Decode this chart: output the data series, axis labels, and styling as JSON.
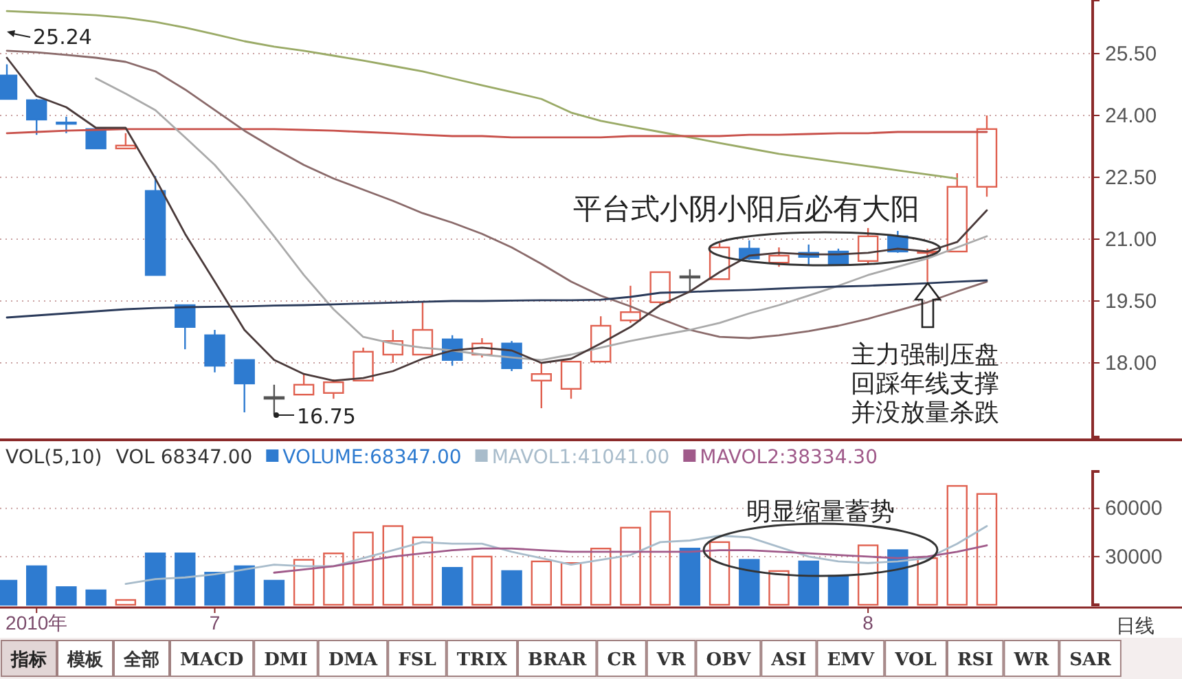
{
  "chart_data": [
    {
      "type": "candlestick",
      "categories": [
        null,
        null,
        null,
        null,
        null,
        null,
        null,
        null,
        null,
        null,
        null,
        null,
        null,
        null,
        null,
        null,
        null,
        null,
        null,
        null,
        null,
        null,
        null,
        null,
        null,
        null,
        null,
        null,
        null,
        null,
        null,
        null,
        null,
        null
      ],
      "ohlc": [
        [
          24.97,
          25.24,
          24.4,
          24.4
        ],
        [
          24.37,
          24.4,
          23.53,
          23.9
        ],
        [
          23.83,
          23.97,
          23.57,
          23.8
        ],
        [
          23.67,
          23.67,
          23.2,
          23.2
        ],
        [
          23.2,
          23.57,
          23.2,
          23.27
        ],
        [
          22.17,
          22.53,
          20.13,
          20.13
        ],
        [
          19.4,
          19.4,
          18.33,
          18.87
        ],
        [
          18.67,
          18.8,
          17.77,
          17.93
        ],
        [
          18.07,
          18.07,
          16.8,
          17.5
        ],
        [
          17.17,
          17.47,
          16.75,
          17.13
        ],
        [
          17.23,
          17.73,
          17.23,
          17.47
        ],
        [
          17.27,
          17.6,
          17.13,
          17.53
        ],
        [
          17.57,
          18.37,
          17.57,
          18.27
        ],
        [
          18.2,
          18.8,
          18.0,
          18.53
        ],
        [
          18.2,
          19.47,
          18.2,
          18.8
        ],
        [
          18.57,
          18.67,
          17.93,
          18.07
        ],
        [
          18.2,
          18.6,
          18.13,
          18.47
        ],
        [
          18.47,
          18.53,
          17.8,
          17.87
        ],
        [
          17.57,
          18.0,
          16.9,
          17.73
        ],
        [
          17.37,
          18.03,
          17.13,
          18.03
        ],
        [
          18.03,
          19.13,
          18.03,
          18.9
        ],
        [
          19.03,
          19.87,
          18.97,
          19.23
        ],
        [
          19.47,
          20.2,
          19.4,
          20.2
        ],
        [
          20.1,
          20.27,
          19.73,
          20.07
        ],
        [
          20.03,
          20.9,
          20.03,
          20.8
        ],
        [
          20.77,
          20.97,
          20.5,
          20.53
        ],
        [
          20.43,
          20.8,
          20.33,
          20.6
        ],
        [
          20.67,
          20.87,
          20.37,
          20.57
        ],
        [
          20.7,
          20.77,
          20.37,
          20.4
        ],
        [
          20.47,
          21.27,
          20.4,
          21.07
        ],
        [
          21.07,
          21.2,
          20.67,
          20.7
        ],
        [
          20.67,
          20.77,
          19.97,
          20.7
        ],
        [
          20.7,
          22.6,
          20.7,
          22.27
        ],
        [
          22.27,
          24.0,
          22.03,
          23.67
        ]
      ],
      "colors": [
        "#2e7bd0",
        "#2e7bd0",
        "#2e7bd0",
        "#2e7bd0",
        "#e0604f",
        "#2e7bd0",
        "#2e7bd0",
        "#2e7bd0",
        "#2e7bd0",
        "#555555",
        "#e0604f",
        "#e0604f",
        "#e0604f",
        "#e0604f",
        "#e0604f",
        "#2e7bd0",
        "#e0604f",
        "#2e7bd0",
        "#e0604f",
        "#e0604f",
        "#e0604f",
        "#e0604f",
        "#e0604f",
        "#555555",
        "#e0604f",
        "#2e7bd0",
        "#e0604f",
        "#2e7bd0",
        "#2e7bd0",
        "#e0604f",
        "#2e7bd0",
        "#e0604f",
        "#e0604f",
        "#e0604f"
      ],
      "series": [
        {
          "type": "line",
          "color": "#9aaa66",
          "values": [
            26.53,
            26.5,
            26.47,
            26.43,
            26.37,
            26.27,
            26.13,
            25.97,
            25.8,
            25.67,
            25.57,
            25.45,
            25.33,
            25.2,
            25.07,
            24.9,
            24.73,
            24.57,
            24.4,
            24.07,
            23.87,
            23.73,
            23.6,
            23.47,
            23.33,
            23.2,
            23.07,
            22.97,
            22.87,
            22.77,
            22.67,
            22.57,
            22.47,
            null
          ]
        },
        {
          "type": "line",
          "color": "#c8504a",
          "values": [
            23.57,
            23.6,
            23.63,
            23.65,
            23.67,
            23.67,
            23.67,
            23.67,
            23.67,
            23.67,
            23.65,
            23.63,
            23.6,
            23.57,
            23.53,
            23.5,
            23.5,
            23.47,
            23.47,
            23.47,
            23.47,
            23.5,
            23.5,
            23.5,
            23.5,
            23.53,
            23.53,
            23.55,
            23.57,
            23.57,
            23.6,
            23.6,
            23.6,
            23.6
          ]
        },
        {
          "type": "line",
          "color": "#8a6a6a",
          "values": [
            25.57,
            25.53,
            25.47,
            25.4,
            25.3,
            25.07,
            24.63,
            24.13,
            23.63,
            23.2,
            22.8,
            22.47,
            22.2,
            21.93,
            21.63,
            21.4,
            21.13,
            20.8,
            20.4,
            19.97,
            19.63,
            19.37,
            19.07,
            18.8,
            18.63,
            18.6,
            18.67,
            18.77,
            18.9,
            19.07,
            19.27,
            19.47,
            19.73,
            19.97
          ]
        },
        {
          "type": "line",
          "color": "#aaaaaa",
          "values": [
            null,
            null,
            null,
            24.9,
            24.53,
            24.13,
            23.47,
            22.8,
            21.97,
            21.07,
            20.13,
            19.3,
            18.63,
            18.47,
            18.37,
            18.3,
            18.2,
            18.13,
            18.07,
            18.2,
            18.37,
            18.53,
            18.67,
            18.8,
            18.97,
            19.2,
            19.4,
            19.63,
            19.87,
            20.13,
            20.33,
            20.53,
            20.8,
            21.07
          ]
        },
        {
          "type": "line",
          "color": "#2a3a5a",
          "values": [
            19.1,
            19.15,
            19.2,
            19.25,
            19.3,
            19.33,
            19.35,
            19.36,
            19.37,
            19.39,
            19.4,
            19.42,
            19.44,
            19.46,
            19.48,
            19.5,
            19.5,
            19.51,
            19.52,
            19.52,
            19.53,
            19.6,
            19.7,
            19.72,
            19.75,
            19.77,
            19.8,
            19.83,
            19.85,
            19.87,
            19.9,
            19.93,
            19.97,
            20.0
          ]
        },
        {
          "type": "line",
          "color": "#4a3a3a",
          "values": [
            25.4,
            24.47,
            24.2,
            23.7,
            23.7,
            22.47,
            21.13,
            19.97,
            18.8,
            18.07,
            17.73,
            17.57,
            17.63,
            17.8,
            18.1,
            18.3,
            18.37,
            18.3,
            18.0,
            18.1,
            18.47,
            18.87,
            19.4,
            19.73,
            20.2,
            20.6,
            20.67,
            20.63,
            20.63,
            20.67,
            20.77,
            20.7,
            20.93,
            21.7
          ]
        }
      ],
      "ylim": [
        16.2,
        26.8
      ],
      "yticks": [
        {
          "value": 18,
          "label": "18.00"
        },
        {
          "value": 19.5,
          "label": "19.50"
        },
        {
          "value": 21,
          "label": "21.00"
        },
        {
          "value": 22.5,
          "label": "22.50"
        },
        {
          "value": 24,
          "label": "24.00"
        },
        {
          "value": 25.5,
          "label": "25.50"
        }
      ],
      "grid": "y",
      "tick_labels": "y",
      "annotations": [
        "25.24",
        "16.75",
        "平台式小阴小阳后必有大阳",
        "主力强制压盘",
        "回踩年线支撑",
        "并没放量杀跌"
      ]
    },
    {
      "type": "bar",
      "title": "VOL(5,10)",
      "subtitle": "VOL 68347.00",
      "categories": [
        null,
        "2010年",
        null,
        null,
        null,
        null,
        null,
        "7",
        null,
        null,
        null,
        null,
        null,
        null,
        null,
        null,
        null,
        null,
        null,
        null,
        null,
        null,
        null,
        null,
        null,
        null,
        null,
        null,
        null,
        "8",
        null,
        null,
        null,
        null
      ],
      "series": [
        {
          "name": "VOLUME:68347.00",
          "color": "#2e7bd0",
          "colors": [
            "#2e7bd0",
            "#2e7bd0",
            "#2e7bd0",
            "#2e7bd0",
            "#e0604f",
            "#2e7bd0",
            "#2e7bd0",
            "#2e7bd0",
            "#2e7bd0",
            "#2e7bd0",
            "#e0604f",
            "#e0604f",
            "#e0604f",
            "#e0604f",
            "#e0604f",
            "#2e7bd0",
            "#e0604f",
            "#2e7bd0",
            "#e0604f",
            "#e0604f",
            "#e0604f",
            "#e0604f",
            "#e0604f",
            "#2e7bd0",
            "#e0604f",
            "#2e7bd0",
            "#e0604f",
            "#2e7bd0",
            "#2e7bd0",
            "#e0604f",
            "#2e7bd0",
            "#e0604f",
            "#e0604f",
            "#e0604f"
          ],
          "values": [
            15000,
            24000,
            11000,
            9000,
            3000,
            32000,
            32000,
            20000,
            24000,
            15000,
            28000,
            32000,
            45000,
            49000,
            42000,
            23000,
            30000,
            21000,
            27000,
            26000,
            35000,
            48000,
            58000,
            35000,
            39000,
            28000,
            21000,
            27000,
            18000,
            37000,
            34000,
            29000,
            74000,
            69000
          ]
        },
        {
          "type": "line",
          "name": "MAVOL1:41041.00",
          "color": "#a8bccb",
          "values": [
            null,
            null,
            null,
            null,
            13000,
            16000,
            17000,
            19000,
            22000,
            25000,
            24000,
            24000,
            29000,
            34000,
            39000,
            38000,
            38000,
            33000,
            29000,
            25000,
            28000,
            31000,
            39000,
            40000,
            43000,
            42000,
            36000,
            30000,
            27000,
            26000,
            27000,
            29000,
            38000,
            49000
          ]
        },
        {
          "type": "line",
          "name": "MAVOL2:38334.30",
          "color": "#a05a8a",
          "values": [
            null,
            null,
            null,
            null,
            null,
            null,
            null,
            null,
            null,
            20000,
            22000,
            24000,
            27000,
            30000,
            32000,
            34000,
            35000,
            35000,
            34000,
            33000,
            33000,
            33000,
            33000,
            33000,
            34000,
            34000,
            33000,
            32000,
            31000,
            30000,
            29000,
            30000,
            33000,
            37000
          ]
        }
      ],
      "ylim": [
        0,
        83000
      ],
      "yticks": [
        30000,
        60000
      ],
      "grid": "y",
      "legend": "top",
      "annotations": [
        "明显缩量蓄势",
        "日线"
      ]
    },
    {
      "type": "other",
      "annotations": [
        "指标",
        "模板",
        "全部",
        "MACD",
        "DMI",
        "DMA",
        "FSL",
        "TRIX",
        "BRAR",
        "CR",
        "VR",
        "OBV",
        "ASI",
        "EMV",
        "VOL",
        "RSI",
        "WR",
        "SAR"
      ]
    }
  ]
}
